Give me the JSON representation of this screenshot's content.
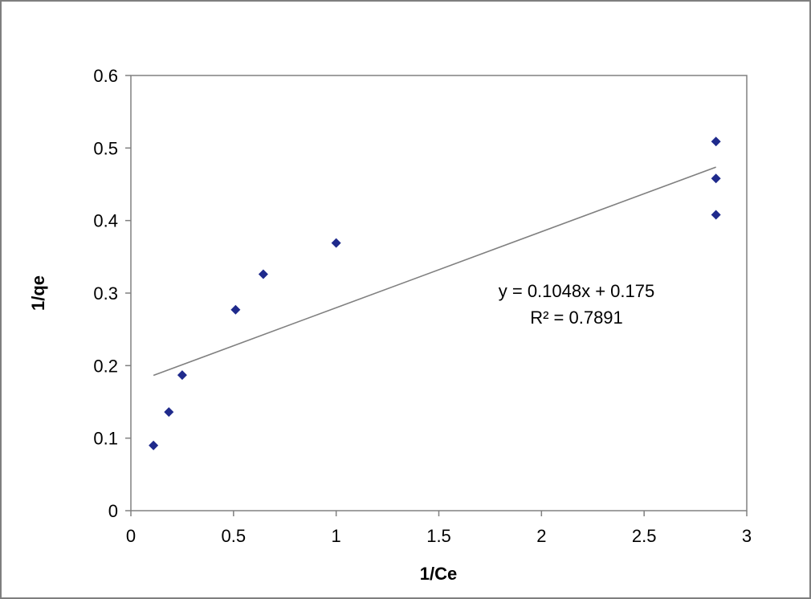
{
  "chart_data": {
    "type": "scatter",
    "title": "",
    "xlabel": "1/Ce",
    "ylabel": "1/qe",
    "xlim": [
      0,
      3
    ],
    "ylim": [
      0,
      0.6
    ],
    "x_ticks": [
      "0",
      "0.5",
      "1",
      "1.5",
      "2",
      "2.5",
      "3"
    ],
    "y_ticks": [
      "0",
      "0.1",
      "0.2",
      "0.3",
      "0.4",
      "0.5",
      "0.6"
    ],
    "grid": false,
    "legend": "none",
    "series": [
      {
        "color": "#1f2a8c",
        "marker": "diamond",
        "points": [
          {
            "x": 0.11,
            "y": 0.09
          },
          {
            "x": 0.185,
            "y": 0.136
          },
          {
            "x": 0.25,
            "y": 0.187
          },
          {
            "x": 0.51,
            "y": 0.277
          },
          {
            "x": 0.645,
            "y": 0.326
          },
          {
            "x": 1.0,
            "y": 0.369
          },
          {
            "x": 2.85,
            "y": 0.408
          },
          {
            "x": 2.85,
            "y": 0.458
          },
          {
            "x": 2.85,
            "y": 0.509
          }
        ]
      }
    ],
    "trendline": {
      "type": "linear",
      "slope": 0.1048,
      "intercept": 0.175,
      "x_range": [
        0.11,
        2.85
      ],
      "color": "#808080",
      "equation_label": "y = 0.1048x + 0.175",
      "r2_label": "R² = 0.7891"
    }
  }
}
